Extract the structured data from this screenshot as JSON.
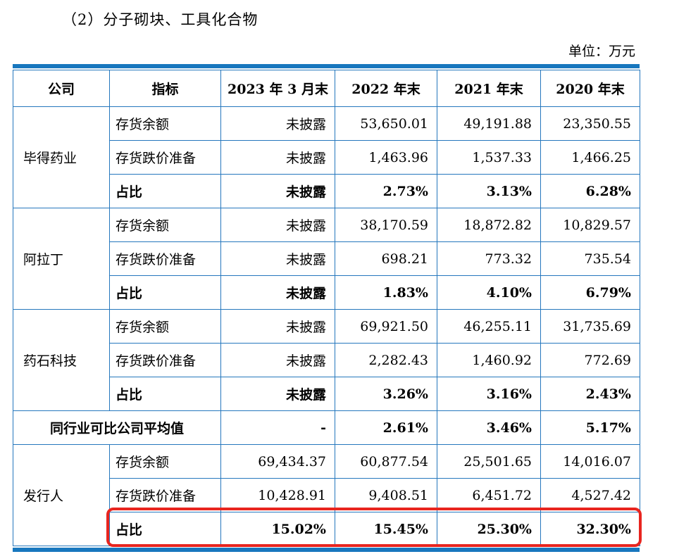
{
  "page": {
    "title": "（2）分子砌块、工具化合物",
    "unit_label": "单位：万元"
  },
  "colors": {
    "table_blue": "#1877BE",
    "highlight_red": "#E8251F"
  },
  "table": {
    "headers": [
      "公司",
      "指标",
      "2023 年 3 月末",
      "2022 年末",
      "2021 年末",
      "2020 年末"
    ],
    "groups": [
      {
        "company": "毕得药业",
        "rows": [
          {
            "indicator": "存货余额",
            "values": [
              "未披露",
              "53,650.01",
              "49,191.88",
              "23,350.55"
            ]
          },
          {
            "indicator": "存货跌价准备",
            "values": [
              "未披露",
              "1,463.96",
              "1,537.33",
              "1,466.25"
            ]
          },
          {
            "indicator": "占比",
            "values": [
              "未披露",
              "2.73%",
              "3.13%",
              "6.28%"
            ]
          }
        ]
      },
      {
        "company": "阿拉丁",
        "rows": [
          {
            "indicator": "存货余额",
            "values": [
              "未披露",
              "38,170.59",
              "18,872.82",
              "10,829.57"
            ]
          },
          {
            "indicator": "存货跌价准备",
            "values": [
              "未披露",
              "698.21",
              "773.32",
              "735.54"
            ]
          },
          {
            "indicator": "占比",
            "values": [
              "未披露",
              "1.83%",
              "4.10%",
              "6.79%"
            ]
          }
        ]
      },
      {
        "company": "药石科技",
        "rows": [
          {
            "indicator": "存货余额",
            "values": [
              "未披露",
              "69,921.50",
              "46,255.11",
              "31,735.69"
            ]
          },
          {
            "indicator": "存货跌价准备",
            "values": [
              "未披露",
              "2,282.43",
              "1,460.92",
              "772.69"
            ]
          },
          {
            "indicator": "占比",
            "values": [
              "未披露",
              "3.26%",
              "3.16%",
              "2.43%"
            ]
          }
        ]
      },
      {
        "company": "发行人",
        "rows": [
          {
            "indicator": "存货余额",
            "values": [
              "69,434.37",
              "60,877.54",
              "25,501.65",
              "14,016.07"
            ]
          },
          {
            "indicator": "存货跌价准备",
            "values": [
              "10,428.91",
              "9,408.51",
              "6,451.72",
              "4,527.42"
            ]
          },
          {
            "indicator": "占比",
            "values": [
              "15.02%",
              "15.45%",
              "25.30%",
              "32.30%"
            ]
          }
        ]
      }
    ],
    "average": {
      "label": "同行业可比公司平均值",
      "values": [
        "-",
        "2.61%",
        "3.46%",
        "5.17%"
      ]
    }
  }
}
